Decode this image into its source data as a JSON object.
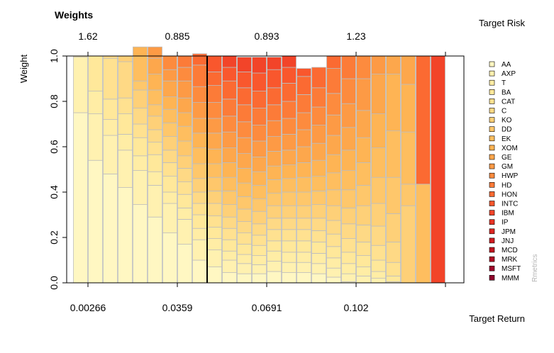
{
  "chart_data": {
    "type": "bar",
    "stacked": true,
    "title": "Weights",
    "ylabel": "Weight",
    "xlabel_bottom": "Target Return",
    "xlabel_top": "Target Risk",
    "watermark": "Rmetrics",
    "ylim": [
      0,
      1
    ],
    "y_ticks": [
      "0.0",
      "0.2",
      "0.4",
      "0.6",
      "0.8",
      "1.0"
    ],
    "x_bottom_ticks": [
      "0.00266",
      "0.0359",
      "0.0691",
      "0.102"
    ],
    "x_top_ticks": [
      "1.62",
      "0.885",
      "0.893",
      "1.23"
    ],
    "minimum_variance_portfolio_index": 9,
    "legend": [
      "AA",
      "AXP",
      "T",
      "BA",
      "CAT",
      "C",
      "KO",
      "DD",
      "EK",
      "XOM",
      "GE",
      "GM",
      "HWP",
      "HD",
      "HON",
      "INTC",
      "IBM",
      "IP",
      "JPM",
      "JNJ",
      "MCD",
      "MRK",
      "MSFT",
      "MMM"
    ],
    "legend_position": "right",
    "portfolios": [
      [
        0.75,
        0.245,
        0.005
      ],
      [
        0.54,
        0.205,
        0.1,
        0.155
      ],
      [
        0.48,
        0.17,
        0.07,
        0.09,
        0.18,
        0.01
      ],
      [
        0.42,
        0.165,
        0.07,
        0.09,
        0.07,
        0.16,
        0.025
      ],
      [
        0.345,
        0.15,
        0.065,
        0.08,
        0.06,
        0.07,
        0.08,
        0.04,
        0.11,
        0.04
      ],
      [
        0.29,
        0.14,
        0.06,
        0.075,
        0.055,
        0.055,
        0.06,
        0.05,
        0.065,
        0.07,
        0.07,
        0.05
      ],
      [
        0.22,
        0.13,
        0.05,
        0.07,
        0.06,
        0.055,
        0.06,
        0.06,
        0.06,
        0.055,
        0.07,
        0.05,
        0.06
      ],
      [
        0.17,
        0.11,
        0.05,
        0.06,
        0.055,
        0.06,
        0.055,
        0.065,
        0.065,
        0.06,
        0.065,
        0.075,
        0.06,
        0.05
      ],
      [
        0.1,
        0.09,
        0.05,
        0.06,
        0.05,
        0.05,
        0.06,
        0.065,
        0.07,
        0.065,
        0.065,
        0.07,
        0.07,
        0.095,
        0.05
      ],
      [
        0.07,
        0.075,
        0.05,
        0.05,
        0.05,
        0.055,
        0.055,
        0.06,
        0.06,
        0.065,
        0.07,
        0.065,
        0.07,
        0.075,
        0.06,
        0.07
      ],
      [
        0.045,
        0.055,
        0.04,
        0.05,
        0.05,
        0.05,
        0.055,
        0.06,
        0.06,
        0.065,
        0.065,
        0.07,
        0.07,
        0.075,
        0.08,
        0.06,
        0.05
      ],
      [
        0.04,
        0.045,
        0.04,
        0.045,
        0.05,
        0.05,
        0.055,
        0.055,
        0.06,
        0.065,
        0.065,
        0.07,
        0.07,
        0.075,
        0.075,
        0.07,
        0.065
      ],
      [
        0.04,
        0.04,
        0.04,
        0.045,
        0.045,
        0.05,
        0.055,
        0.055,
        0.06,
        0.06,
        0.065,
        0.07,
        0.07,
        0.075,
        0.075,
        0.08,
        0.07
      ],
      [
        0.05,
        0.045,
        0.045,
        0.045,
        0.05,
        0.05,
        0.055,
        0.055,
        0.06,
        0.06,
        0.065,
        0.065,
        0.07,
        0.07,
        0.075,
        0.08,
        0.055
      ],
      [
        0.045,
        0.045,
        0.045,
        0.05,
        0.05,
        0.05,
        0.055,
        0.06,
        0.06,
        0.06,
        0.065,
        0.07,
        0.07,
        0.075,
        0.08,
        0.07,
        0.05
      ],
      [
        0.045,
        0.045,
        0.045,
        0.05,
        0.05,
        0.05,
        0.055,
        0.06,
        0.065,
        0.065,
        0.07,
        0.075,
        0.075,
        0.08,
        0.08,
        0.035
      ],
      [
        0.04,
        0.045,
        0.045,
        0.05,
        0.05,
        0.055,
        0.06,
        0.06,
        0.065,
        0.07,
        0.075,
        0.08,
        0.08,
        0.085,
        0.09
      ],
      [
        0.025,
        0.04,
        0.045,
        0.05,
        0.055,
        0.06,
        0.065,
        0.07,
        0.075,
        0.08,
        0.085,
        0.09,
        0.095,
        0.11,
        0.055
      ],
      [
        0.005,
        0.035,
        0.045,
        0.05,
        0.06,
        0.065,
        0.07,
        0.08,
        0.085,
        0.09,
        0.1,
        0.105,
        0.11,
        0.1
      ],
      [
        0.0,
        0.03,
        0.04,
        0.05,
        0.06,
        0.075,
        0.085,
        0.09,
        0.1,
        0.11,
        0.12,
        0.14,
        0.1
      ],
      [
        0.0,
        0.02,
        0.03,
        0.05,
        0.065,
        0.085,
        0.1,
        0.115,
        0.13,
        0.15,
        0.175,
        0.08
      ],
      [
        0.0,
        0.0,
        0.005,
        0.025,
        0.06,
        0.09,
        0.125,
        0.16,
        0.205,
        0.25,
        0.08
      ],
      [
        0.0,
        0.0,
        0.0,
        0.0,
        0.0,
        0.0,
        0.34,
        0.095,
        0.23,
        0.21,
        0.125
      ],
      [
        0.0,
        0.0,
        0.0,
        0.0,
        0.0,
        0.0,
        0.0,
        0.0,
        0.435,
        0.0,
        0.0,
        0.0,
        0.0,
        0.0,
        0.565
      ],
      [
        0.0,
        0.0,
        0.0,
        0.0,
        0.0,
        0.0,
        0.0,
        0.0,
        0.0,
        0.0,
        0.0,
        0.0,
        0.0,
        0.0,
        0.0,
        0.0,
        1.0
      ]
    ]
  },
  "colors": {
    "palette": [
      "#FFF7C2",
      "#FFF1B0",
      "#FFEDA5",
      "#FFE89A",
      "#FFE190",
      "#FED985",
      "#FED078",
      "#FEC76B",
      "#FEBE5F",
      "#FEB454",
      "#FDA74C",
      "#FD9A45",
      "#FD8B3E",
      "#FC7B38",
      "#FB6A32",
      "#F9572D",
      "#F24429",
      "#E93425",
      "#DE2722",
      "#D21C20",
      "#C3131F",
      "#B20C24",
      "#A0062A",
      "#8F002C"
    ]
  }
}
